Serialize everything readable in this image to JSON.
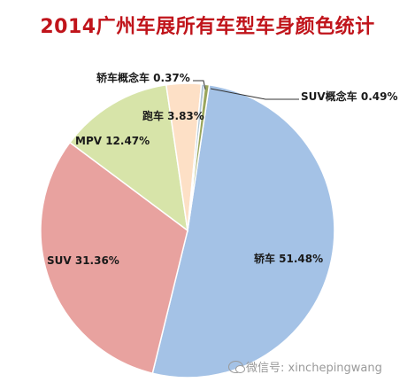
{
  "chart_data": {
    "type": "pie",
    "title": "2014广州车展所有车型车身颜色统计",
    "slices": [
      {
        "label": "轿车",
        "value": 51.48,
        "display": "轿车 51.48%",
        "color": "#a4c2e6"
      },
      {
        "label": "SUV",
        "value": 31.36,
        "display": "SUV 31.36%",
        "color": "#e8a29f"
      },
      {
        "label": "MPV",
        "value": 12.47,
        "display": "MPV 12.47%",
        "color": "#d7e4a9"
      },
      {
        "label": "跑车",
        "value": 3.83,
        "display": "跑车 3.83%",
        "color": "#fde0c6"
      },
      {
        "label": "轿车概念车",
        "value": 0.37,
        "display": "轿车概念车 0.37%",
        "color": "#b3c7d6"
      },
      {
        "label": "SUV概念车",
        "value": 0.49,
        "display": "SUV概念车 0.49%",
        "color": "#9aa65c"
      }
    ]
  },
  "watermark": {
    "text": "微信号: xinchepingwang",
    "icon": "wechat-icon"
  }
}
